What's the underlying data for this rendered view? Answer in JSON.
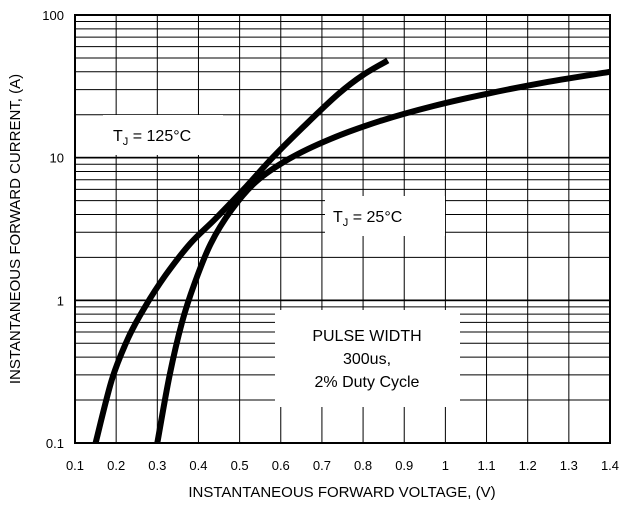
{
  "chart_data": {
    "type": "line",
    "title": "",
    "xlabel": "INSTANTANEOUS FORWARD VOLTAGE, (V)",
    "ylabel": "INSTANTANEOUS FORWARD CURRENT, (A)",
    "xlim": [
      0.1,
      1.4
    ],
    "ylim": [
      0.1,
      100
    ],
    "y_scale": "log",
    "grid": true,
    "x_ticks": [
      "0.1",
      "0.2",
      "0.3",
      "0.4",
      "0.5",
      "0.6",
      "0.7",
      "0.8",
      "0.9",
      "1",
      "1.1",
      "1.2",
      "1.3",
      "1.4"
    ],
    "y_ticks": [
      "0.1",
      "1",
      "10",
      "100"
    ],
    "series": [
      {
        "name": "TJ = 125°C",
        "x": [
          0.15,
          0.19,
          0.23,
          0.27,
          0.32,
          0.38,
          0.44,
          0.51,
          0.58,
          0.66,
          0.74,
          0.8,
          0.86
        ],
        "y": [
          0.1,
          0.28,
          0.55,
          0.9,
          1.5,
          2.5,
          3.7,
          6.0,
          10.0,
          17.0,
          28.0,
          38.0,
          48.0
        ]
      },
      {
        "name": "TJ = 25°C",
        "x": [
          0.3,
          0.33,
          0.36,
          0.39,
          0.43,
          0.48,
          0.54,
          0.62,
          0.72,
          0.84,
          0.97,
          1.1,
          1.25,
          1.4
        ],
        "y": [
          0.1,
          0.3,
          0.7,
          1.3,
          2.5,
          4.3,
          6.8,
          9.8,
          13.5,
          18.0,
          23.0,
          28.0,
          34.0,
          40.0
        ]
      }
    ],
    "annotations": {
      "tj125_prefix": "T",
      "tj125_sub": "J",
      "tj125_suffix": " = 125°C",
      "tj25_prefix": "T",
      "tj25_sub": "J",
      "tj25_suffix": " = 25°C",
      "pulse_line1": "PULSE WIDTH",
      "pulse_line2": "300us,",
      "pulse_line3": "2% Duty Cycle"
    },
    "colors": {
      "line": "#000000",
      "grid": "#000000",
      "background": "#ffffff"
    }
  }
}
